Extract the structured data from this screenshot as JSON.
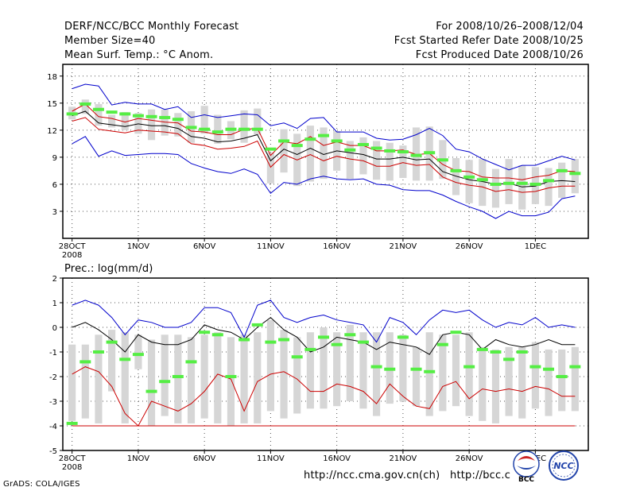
{
  "header": {
    "title": "DERF/NCC/BCC Monthly Forecast",
    "member_size": "Member Size=40",
    "variable": "Mean Surf. Temp.: °C Anom.",
    "period": "For 2008/10/26–2008/12/04",
    "started": "Fcst Started Refer Date 2008/10/25",
    "produced": "Fcst Produced Date 2008/10/26"
  },
  "precip_title": "Prec.: log(mm/d)",
  "footer": {
    "credit": "GrADS: COLA/IGES",
    "url1": "http://ncc.cma.gov.cn(ch)",
    "url2": "http://bcc.c",
    "logo1_text": "BCC",
    "logo2_text": "NCC"
  },
  "colors": {
    "envelope": "#0000cc",
    "spread": "#cc0000",
    "mean": "#000000",
    "box": "#d6d6d6",
    "marker": "#55ee44",
    "grid": "#555555"
  },
  "chart_data": [
    {
      "type": "box-plume",
      "title": "Mean Surf. Temp.: °C Anom.",
      "xlabel": "",
      "ylabel": "°C",
      "x_ticks": [
        {
          "day": 0,
          "label": "28OCT",
          "sub": "2008"
        },
        {
          "day": 5,
          "label": "1NOV"
        },
        {
          "day": 10,
          "label": "6NOV"
        },
        {
          "day": 15,
          "label": "11NOV"
        },
        {
          "day": 20,
          "label": "16NOV"
        },
        {
          "day": 25,
          "label": "21NOV"
        },
        {
          "day": 30,
          "label": "26NOV"
        },
        {
          "day": 35,
          "label": "1DEC"
        }
      ],
      "xlim": [
        -0.7,
        39
      ],
      "ylim": [
        0,
        19.3
      ],
      "y_ticks": [
        3,
        6,
        9,
        12,
        15,
        18
      ],
      "days": [
        0,
        1,
        2,
        3,
        4,
        5,
        6,
        7,
        8,
        9,
        10,
        11,
        12,
        13,
        14,
        15,
        16,
        17,
        18,
        19,
        20,
        21,
        22,
        23,
        24,
        25,
        26,
        27,
        28,
        29,
        30,
        31,
        32,
        33,
        34,
        35,
        36,
        37,
        38
      ],
      "max": [
        16.6,
        17.1,
        16.9,
        14.8,
        15.1,
        14.9,
        14.9,
        14.3,
        14.6,
        13.4,
        13.7,
        13.4,
        13.6,
        13.8,
        13.7,
        12.5,
        12.8,
        12.2,
        13.3,
        13.4,
        11.8,
        11.8,
        11.8,
        11.1,
        10.9,
        11.0,
        11.5,
        12.2,
        11.4,
        9.9,
        9.6,
        8.8,
        8.2,
        7.6,
        8.1,
        8.1,
        8.6,
        9.1,
        8.7
      ],
      "spread_hi": [
        14.1,
        14.9,
        13.5,
        13.3,
        12.9,
        13.3,
        13.1,
        12.9,
        12.8,
        11.9,
        11.8,
        11.5,
        11.5,
        12.1,
        12.2,
        9.2,
        10.7,
        10.5,
        11.3,
        10.3,
        10.7,
        10.3,
        10.3,
        9.7,
        9.7,
        9.8,
        9.3,
        9.4,
        8.2,
        7.5,
        7.4,
        6.8,
        6.7,
        6.7,
        6.5,
        6.8,
        7.0,
        7.5,
        7.4
      ],
      "mean": [
        13.6,
        14.1,
        12.8,
        12.6,
        12.4,
        12.7,
        12.5,
        12.5,
        12.2,
        11.3,
        11.1,
        10.7,
        10.8,
        11.1,
        11.5,
        8.6,
        9.9,
        9.3,
        10.0,
        9.3,
        9.7,
        9.5,
        9.3,
        8.8,
        8.8,
        9.0,
        8.7,
        8.8,
        7.4,
        6.9,
        6.5,
        6.3,
        6.0,
        6.1,
        5.7,
        5.8,
        6.3,
        6.4,
        6.3
      ],
      "spread_lo": [
        13.0,
        13.4,
        12.1,
        11.9,
        11.7,
        12.0,
        11.9,
        11.8,
        11.6,
        10.5,
        10.3,
        9.9,
        10.0,
        10.2,
        10.8,
        7.9,
        9.3,
        8.7,
        9.3,
        8.6,
        9.1,
        8.8,
        8.6,
        8.0,
        8.0,
        8.4,
        8.1,
        8.2,
        6.8,
        6.2,
        5.9,
        5.7,
        5.2,
        5.4,
        5.1,
        5.2,
        5.6,
        5.8,
        5.8
      ],
      "min": [
        10.5,
        11.3,
        9.1,
        9.7,
        9.2,
        9.3,
        9.4,
        9.4,
        9.3,
        8.3,
        7.8,
        7.4,
        7.2,
        7.7,
        7.1,
        5.0,
        6.2,
        6.0,
        6.6,
        6.9,
        6.6,
        6.5,
        6.6,
        6.0,
        5.9,
        5.4,
        5.3,
        5.3,
        4.8,
        4.1,
        3.5,
        3.0,
        2.2,
        3.0,
        2.5,
        2.5,
        2.9,
        4.4,
        4.7
      ],
      "box_hi": [
        14.6,
        15.4,
        14.9,
        13.7,
        14.0,
        13.9,
        14.3,
        14.3,
        13.9,
        14.1,
        14.7,
        13.7,
        13.0,
        14.2,
        14.4,
        9.5,
        12.1,
        11.6,
        12.5,
        12.3,
        11.9,
        10.8,
        11.2,
        10.8,
        10.6,
        10.3,
        12.3,
        12.4,
        10.9,
        8.9,
        8.7,
        8.8,
        7.7,
        8.8,
        8.1,
        7.9,
        7.8,
        8.4,
        8.8
      ],
      "box_lo": [
        13.2,
        13.8,
        12.5,
        12.3,
        12.0,
        11.6,
        10.9,
        11.4,
        11.3,
        10.6,
        11.6,
        10.5,
        11.0,
        10.6,
        11.5,
        6.1,
        7.3,
        5.8,
        6.3,
        6.6,
        7.5,
        6.6,
        7.1,
        6.5,
        6.4,
        6.7,
        6.4,
        6.4,
        6.6,
        4.8,
        3.9,
        3.6,
        3.4,
        3.8,
        3.2,
        3.8,
        3.6,
        4.5,
        5.0
      ],
      "markers": [
        13.8,
        14.9,
        14.3,
        14.0,
        13.8,
        13.6,
        13.5,
        13.4,
        13.2,
        12.3,
        12.1,
        11.8,
        12.1,
        12.1,
        12.1,
        9.9,
        10.8,
        10.3,
        11.0,
        11.4,
        10.8,
        9.8,
        10.4,
        10.0,
        9.7,
        9.6,
        9.2,
        9.5,
        8.7,
        7.5,
        6.8,
        6.5,
        6.0,
        6.1,
        6.1,
        6.0,
        6.4,
        7.5,
        7.2
      ]
    },
    {
      "type": "box-plume",
      "title": "Prec.: log(mm/d)",
      "xlabel": "",
      "ylabel": "log(mm/d)",
      "x_ticks": [
        {
          "day": 0,
          "label": "28OCT",
          "sub": "2008"
        },
        {
          "day": 5,
          "label": "1NOV"
        },
        {
          "day": 10,
          "label": "6NOV"
        },
        {
          "day": 15,
          "label": "11NOV"
        },
        {
          "day": 20,
          "label": "16NOV"
        },
        {
          "day": 25,
          "label": "21NOV"
        },
        {
          "day": 30,
          "label": "26NOV"
        },
        {
          "day": 35,
          "label": "1DEC"
        }
      ],
      "xlim": [
        -0.7,
        39
      ],
      "ylim": [
        -5,
        2
      ],
      "y_ticks": [
        -5,
        -4,
        -3,
        -2,
        -1,
        0,
        1,
        2
      ],
      "days": [
        0,
        1,
        2,
        3,
        4,
        5,
        6,
        7,
        8,
        9,
        10,
        11,
        12,
        13,
        14,
        15,
        16,
        17,
        18,
        19,
        20,
        21,
        22,
        23,
        24,
        25,
        26,
        27,
        28,
        29,
        30,
        31,
        32,
        33,
        34,
        35,
        36,
        37,
        38
      ],
      "max": [
        0.9,
        1.1,
        0.9,
        0.4,
        -0.3,
        0.3,
        0.2,
        0.0,
        0.0,
        0.2,
        0.8,
        0.8,
        0.6,
        -0.4,
        0.9,
        1.1,
        0.4,
        0.2,
        0.4,
        0.5,
        0.3,
        0.2,
        0.1,
        -0.6,
        0.4,
        0.2,
        -0.3,
        0.3,
        0.7,
        0.6,
        0.7,
        0.3,
        0.0,
        0.2,
        0.1,
        0.4,
        0.0,
        0.1,
        0.0
      ],
      "mean": [
        0.0,
        0.2,
        -0.1,
        -0.5,
        -1.0,
        -0.3,
        -0.6,
        -0.7,
        -0.7,
        -0.5,
        0.1,
        -0.1,
        -0.2,
        -0.5,
        0.0,
        0.4,
        -0.1,
        -0.4,
        -1.0,
        -0.8,
        -0.4,
        -0.5,
        -0.6,
        -0.9,
        -0.6,
        -0.7,
        -0.8,
        -1.1,
        -0.3,
        -0.2,
        -0.3,
        -0.9,
        -0.5,
        -0.7,
        -0.8,
        -0.7,
        -0.5,
        -0.7,
        -0.7
      ],
      "spread_lo": [
        -1.9,
        -1.6,
        -1.8,
        -2.4,
        -3.5,
        -4.0,
        -3.0,
        -3.2,
        -3.4,
        -3.1,
        -2.6,
        -1.9,
        -2.1,
        -3.4,
        -2.2,
        -1.9,
        -1.8,
        -2.1,
        -2.6,
        -2.6,
        -2.3,
        -2.4,
        -2.6,
        -3.1,
        -2.3,
        -2.8,
        -3.2,
        -3.3,
        -2.4,
        -2.2,
        -2.9,
        -2.5,
        -2.6,
        -2.5,
        -2.6,
        -2.4,
        -2.5,
        -2.8,
        -2.8
      ],
      "min": [
        -4.0,
        -4.0,
        -4.0,
        -4.0,
        -4.0,
        -4.0,
        -4.0,
        -4.0,
        -4.0,
        -4.0,
        -4.0,
        -4.0,
        -4.0,
        -4.0,
        -4.0,
        -4.0,
        -4.0,
        -4.0,
        -4.0,
        -4.0,
        -4.0,
        -4.0,
        -4.0,
        -4.0,
        -4.0,
        -4.0,
        -4.0,
        -4.0,
        -4.0,
        -4.0,
        -4.0,
        -4.0,
        -4.0,
        -4.0,
        -4.0,
        -4.0,
        -4.0,
        -4.0,
        -4.0
      ],
      "box_hi": [
        -0.7,
        -0.7,
        -0.3,
        -0.1,
        -0.2,
        -0.3,
        -0.5,
        -0.3,
        -0.3,
        -0.4,
        -0.3,
        -0.2,
        -0.4,
        -0.3,
        -0.2,
        0.3,
        -0.1,
        -0.4,
        -0.2,
        0.0,
        -0.2,
        0.1,
        -0.2,
        -0.2,
        -0.2,
        -0.3,
        -0.8,
        -0.2,
        -0.3,
        -0.3,
        -0.2,
        -0.8,
        -0.9,
        -0.8,
        -0.8,
        -0.6,
        -0.9,
        -0.9,
        -0.8
      ],
      "box_lo": [
        -3.8,
        -3.7,
        -3.9,
        -2.6,
        -3.9,
        -1.7,
        -4.0,
        -3.6,
        -3.9,
        -3.9,
        -3.7,
        -3.9,
        -4.0,
        -3.9,
        -3.9,
        -3.4,
        -3.7,
        -3.5,
        -3.3,
        -3.3,
        -3.2,
        -3.0,
        -3.3,
        -3.6,
        -3.1,
        -3.0,
        -3.2,
        -3.6,
        -3.4,
        -3.2,
        -3.6,
        -3.8,
        -3.9,
        -3.6,
        -3.7,
        -3.3,
        -3.6,
        -3.4,
        -3.4
      ],
      "markers": [
        -3.9,
        -1.4,
        -1.0,
        -0.6,
        -1.3,
        -1.1,
        -2.6,
        -2.2,
        -2.0,
        -1.4,
        -0.2,
        -0.3,
        -2.0,
        -0.5,
        0.1,
        -0.6,
        -0.5,
        -1.2,
        -0.9,
        -0.4,
        -0.7,
        -0.3,
        -0.6,
        -1.6,
        -1.7,
        -0.4,
        -1.7,
        -1.8,
        -0.7,
        -0.2,
        -1.6,
        -0.9,
        -1.0,
        -1.3,
        -1.0,
        -1.6,
        -1.7,
        -2.0,
        -1.6
      ]
    }
  ]
}
